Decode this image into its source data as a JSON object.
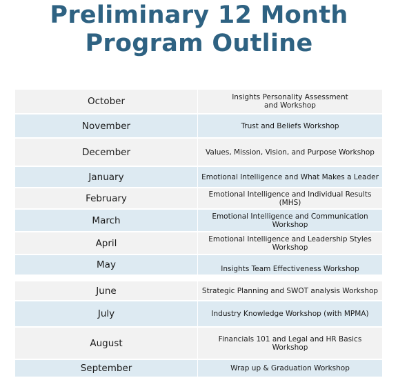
{
  "title_line1": "Preliminary 12 Month",
  "title_line2": "Program Outline",
  "rows": [
    {
      "month": "October",
      "topic": "Insights Personality Assessment\nand Workshop"
    },
    {
      "month": "November",
      "topic": "Trust and Beliefs Workshop"
    },
    {
      "month": "December",
      "topic": "Values, Mission, Vision, and Purpose Workshop"
    },
    {
      "month": "January",
      "topic": "Emotional Intelligence and What Makes a Leader"
    },
    {
      "month": "February",
      "topic": "Emotional Intelligence and Individual Results\n(MHS)"
    },
    {
      "month": "March",
      "topic": "Emotional Intelligence and Communication\nWorkshop"
    },
    {
      "month": "April",
      "topic": "Emotional Intelligence and Leadership Styles\nWorkshop"
    },
    {
      "month": "May",
      "topic": "Insights Team Effectiveness Workshop"
    },
    {
      "month": "June",
      "topic": "Strategic Planning and SWOT analysis Workshop"
    },
    {
      "month": "July",
      "topic": "Industry Knowledge Workshop (with MPMA)"
    },
    {
      "month": "August",
      "topic": "Financials 101 and Legal and HR Basics Workshop"
    },
    {
      "month": "September",
      "topic": "Wrap up & Graduation Workshop"
    }
  ]
}
